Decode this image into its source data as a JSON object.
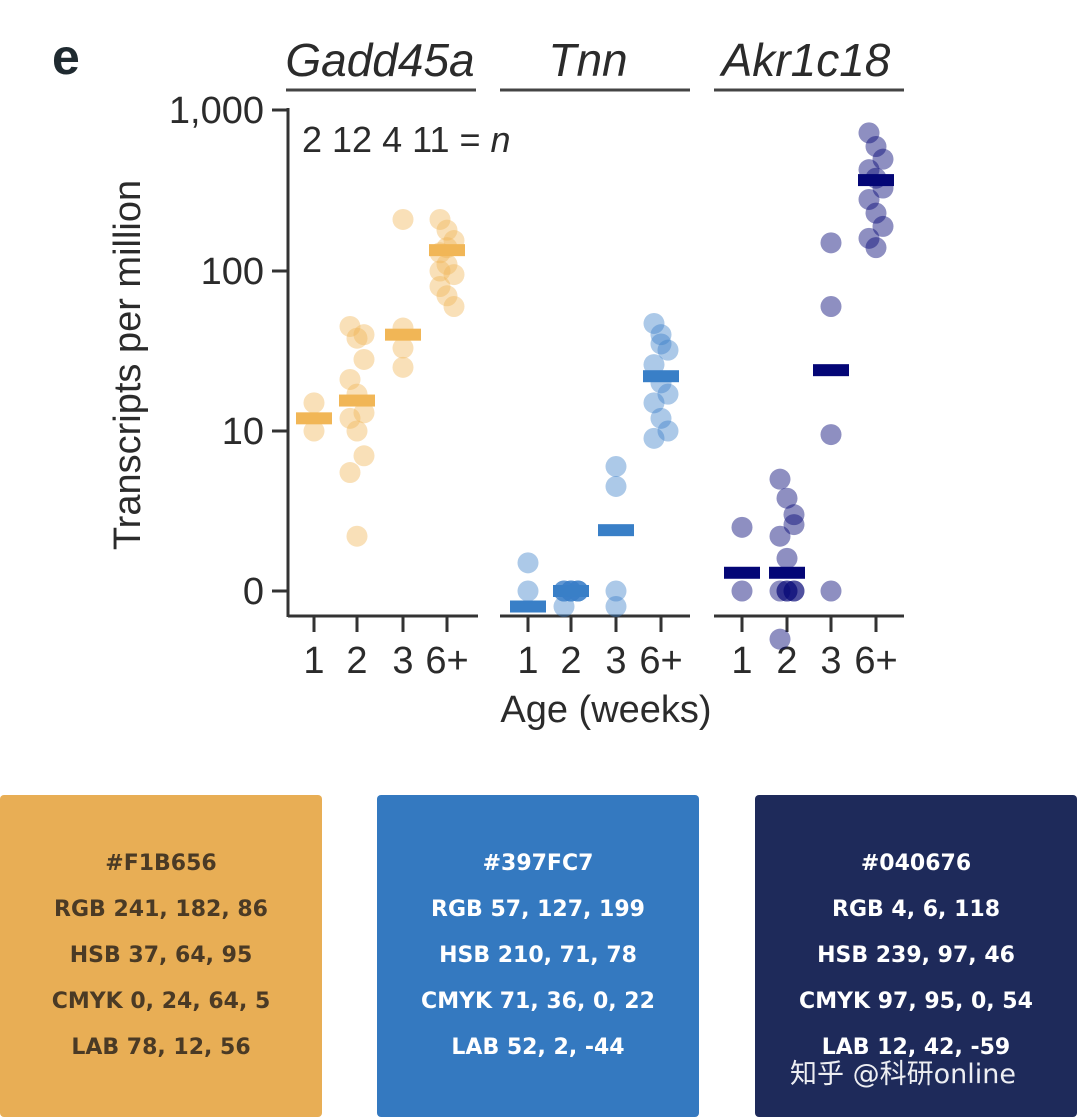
{
  "panel_label": "e",
  "chart_data": {
    "type": "scatter",
    "title": "",
    "ylabel": "Transcripts per million",
    "xlabel": "Age (weeks)",
    "y_scale": "log-like (0 at bottom)",
    "y_ticks": [
      "1,000",
      "100",
      "10",
      "0"
    ],
    "y_tick_values": [
      1000,
      100,
      10,
      0
    ],
    "x_categories": [
      "1",
      "2",
      "3",
      "6+"
    ],
    "n_label": {
      "counts": "2 12 4 11",
      "eq": " = ",
      "n": "n"
    },
    "grid": false,
    "panels": [
      {
        "gene": "Gadd45a",
        "color": "#F1B656",
        "groups": [
          {
            "age": "1",
            "median": 12,
            "points": [
              10,
              15
            ]
          },
          {
            "age": "2",
            "median": 15.5,
            "points": [
              45,
              38,
              28,
              21,
              17,
              13,
              12,
              10,
              7,
              5.5,
              2.2,
              40
            ]
          },
          {
            "age": "3",
            "median": 40,
            "points": [
              210,
              44,
              33,
              25
            ]
          },
          {
            "age": "6+",
            "median": 135,
            "points": [
              210,
              180,
              155,
              130,
              110,
              95,
              80,
              70,
              60,
              100,
              140
            ]
          }
        ]
      },
      {
        "gene": "Tnn",
        "color": "#397FC7",
        "groups": [
          {
            "age": "1",
            "median": 0.8,
            "points": [
              1.5,
              0.05
            ]
          },
          {
            "age": "2",
            "median": 0.05,
            "points": [
              0.05,
              0.05,
              0.05,
              0.05,
              0.05,
              0.05,
              0.05,
              0.05,
              0.1,
              0.8,
              0.05,
              0.05
            ]
          },
          {
            "age": "3",
            "median": 2.4,
            "points": [
              6,
              4.5,
              0.8,
              0.05
            ]
          },
          {
            "age": "6+",
            "median": 22,
            "points": [
              47,
              40,
              32,
              26,
              20,
              17,
              15,
              12,
              10,
              9,
              35
            ]
          }
        ]
      },
      {
        "gene": "Akr1c18",
        "color": "#040676",
        "groups": [
          {
            "age": "1",
            "median": 1.3,
            "points": [
              2.5,
              0.05
            ]
          },
          {
            "age": "2",
            "median": 1.3,
            "points": [
              5,
              3.8,
              3.0,
              2.2,
              1.6,
              1.0,
              0.5,
              0.05,
              0.05,
              0.05,
              0.05,
              2.6
            ]
          },
          {
            "age": "3",
            "median": 24,
            "points": [
              150,
              60,
              9.5,
              0.05
            ]
          },
          {
            "age": "6+",
            "median": 370,
            "points": [
              730,
              600,
              500,
              430,
              380,
              330,
              280,
              230,
              190,
              160,
              140
            ]
          }
        ]
      }
    ]
  },
  "swatches": [
    {
      "hex": "#F1B656",
      "rgb": "RGB 241, 182, 86",
      "hsb": "HSB 37, 64, 95",
      "cmyk": "CMYK 0, 24, 64, 5",
      "lab": "LAB 78, 12, 56",
      "bg": "#E8AE55",
      "text_color": "#4a3a25"
    },
    {
      "hex": "#397FC7",
      "rgb": "RGB 57, 127, 199",
      "hsb": "HSB 210, 71, 78",
      "cmyk": "CMYK 71, 36, 0, 22",
      "lab": "LAB 52, 2, -44",
      "bg": "#3479C0",
      "text_color": "#ffffff"
    },
    {
      "hex": "#040676",
      "rgb": "RGB 4, 6, 118",
      "hsb": "HSB 239, 97, 46",
      "cmyk": "CMYK 97, 95, 0, 54",
      "lab": "LAB 12, 42, -59",
      "bg": "#1E2A5A",
      "text_color": "#ffffff"
    }
  ],
  "watermark": "知乎 @科研online"
}
